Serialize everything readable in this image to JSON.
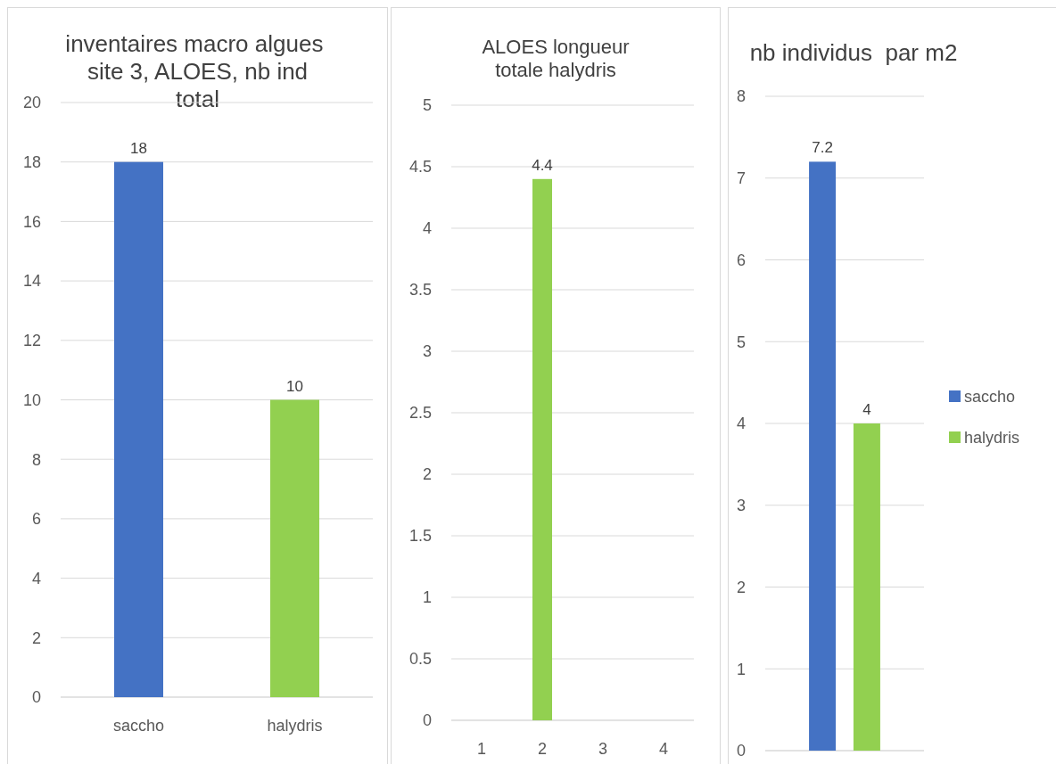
{
  "chart_data": [
    {
      "type": "bar",
      "title": "inventaires macro algues  site 3, ALOES, nb ind total",
      "categories": [
        "saccho",
        "halydris"
      ],
      "values": [
        18,
        10
      ],
      "colors": [
        "#4472c4",
        "#92d050"
      ],
      "ylim": [
        0,
        20
      ],
      "yticks": [
        0,
        2,
        4,
        6,
        8,
        10,
        12,
        14,
        16,
        18,
        20
      ],
      "grid": "y",
      "data_labels": true
    },
    {
      "type": "bar",
      "title": "ALOES longueur totale halydris",
      "categories": [
        "1",
        "2",
        "3",
        "4"
      ],
      "values": [
        null,
        4.4,
        null,
        null
      ],
      "color": "#92d050",
      "ylim": [
        0,
        5
      ],
      "yticks": [
        0,
        0.5,
        1,
        1.5,
        2,
        2.5,
        3,
        3.5,
        4,
        4.5,
        5
      ],
      "grid": "y",
      "data_labels": true
    },
    {
      "type": "bar",
      "title": "nb individus  par m2",
      "categories": [
        null
      ],
      "series": [
        {
          "name": "saccho",
          "color": "#4472c4",
          "values": [
            7.2
          ]
        },
        {
          "name": "halydris",
          "color": "#92d050",
          "values": [
            4
          ]
        }
      ],
      "ylim": [
        0,
        8
      ],
      "yticks": [
        0,
        1,
        2,
        3,
        4,
        5,
        6,
        7,
        8
      ],
      "grid": "y",
      "legend": "right",
      "data_labels": true,
      "tick_labels": "y"
    }
  ]
}
